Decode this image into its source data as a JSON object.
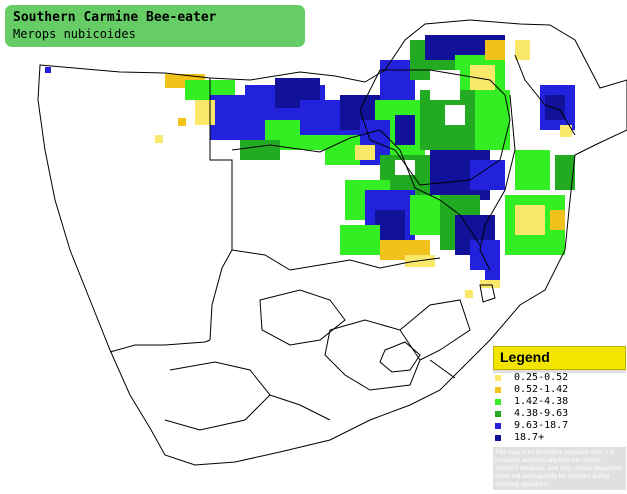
{
  "title": {
    "common_name": "Southern Carmine Bee-eater",
    "scientific_name": "Merops nubicoides"
  },
  "legend": {
    "heading": "Legend",
    "items": [
      {
        "label": "0.25-0.52",
        "color": "#f9e86a"
      },
      {
        "label": "0.52-1.42",
        "color": "#f2c21c"
      },
      {
        "label": "1.42-4.38",
        "color": "#33ee22"
      },
      {
        "label": "4.38-9.63",
        "color": "#22aa22"
      },
      {
        "label": "9.63-18.7",
        "color": "#2222dd"
      },
      {
        "label": "18.7+",
        "color": "#111199"
      }
    ],
    "disclaimer_lines": [
      "This map is for illustrative purposes only; it is",
      "produced automatically from the current",
      "SABAP2 database, and may contain datapoints",
      "which will subsequently be removed during",
      "checking operations."
    ]
  }
}
